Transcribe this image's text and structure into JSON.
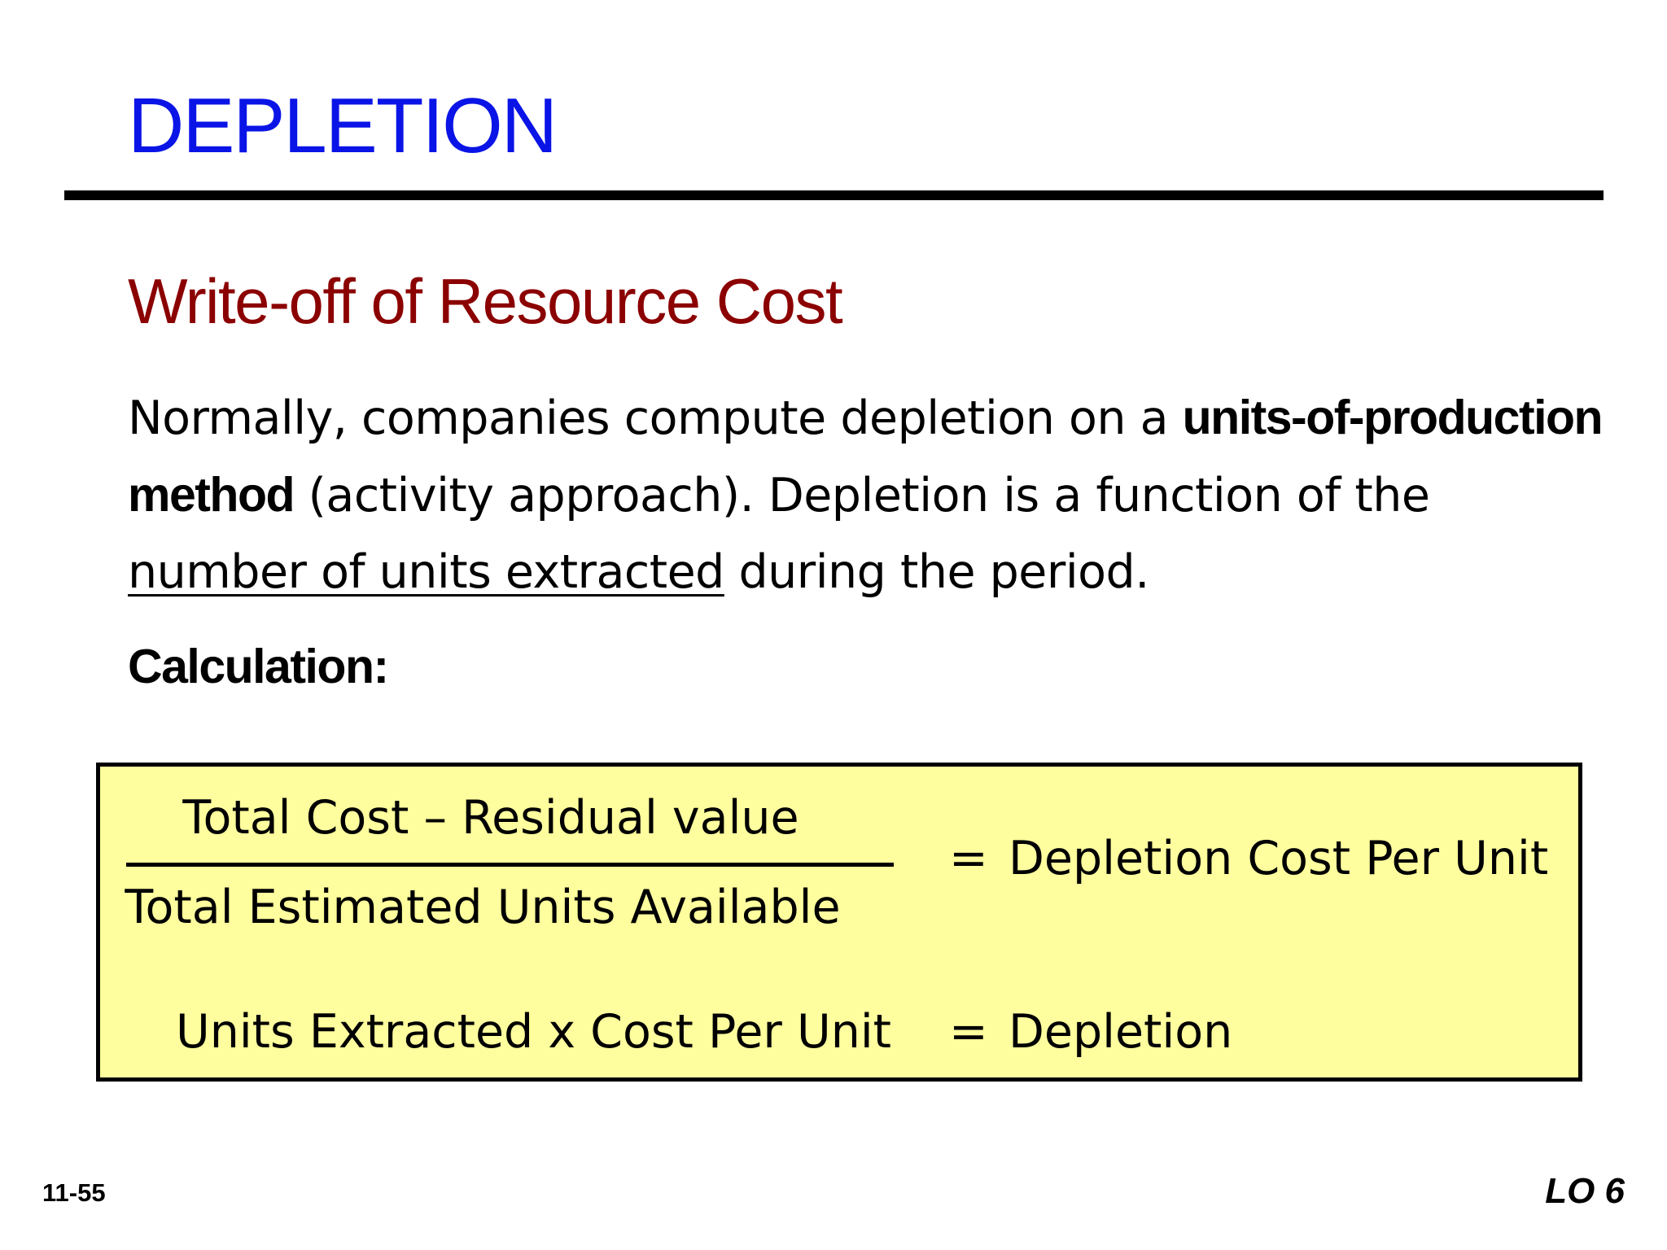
{
  "slide": {
    "title": "DEPLETION",
    "subtitle": "Write-off of Resource Cost",
    "paragraph": {
      "part1": "Normally, companies compute depletion on a ",
      "bold1": "units-of-production",
      "bold2": "method",
      "part2": " (activity approach).  Depletion is a function of the",
      "underlined": "number of units extracted",
      "part3": " during the period."
    },
    "calculation_label": "Calculation:",
    "formula": {
      "numerator": "Total Cost – Residual value",
      "denominator": "Total Estimated Units Available",
      "equals1": "=",
      "result1": "Depletion Cost Per Unit",
      "lhs2": "Units Extracted x Cost Per Unit",
      "equals2": "=",
      "result2": "Depletion"
    },
    "slide_number": "11-55",
    "learning_objective": "LO 6"
  },
  "colors": {
    "title": "#0a14e6",
    "subtitle": "#8b0000",
    "box_fill": "#fffe9e",
    "rule": "#000000"
  }
}
